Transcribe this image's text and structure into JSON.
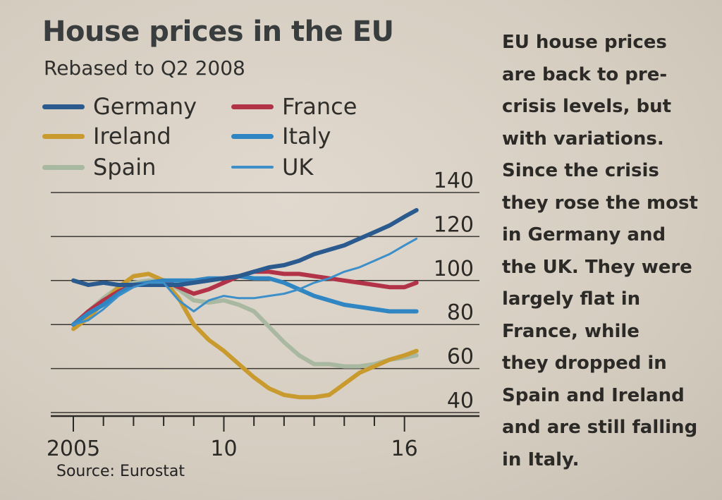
{
  "chart_data": {
    "type": "line",
    "title": "House prices in the EU",
    "subtitle": "Rebased to Q2 2008",
    "source": "Source: Eurostat",
    "ylim": [
      40,
      140
    ],
    "yticks": [
      40,
      60,
      80,
      100,
      120,
      140
    ],
    "xticks": [
      {
        "year": 2005,
        "label": "2005"
      },
      {
        "year": 2010,
        "label": "10"
      },
      {
        "year": 2016,
        "label": "16"
      }
    ],
    "xrange": [
      2005,
      2016.5
    ],
    "series": [
      {
        "name": "Germany",
        "color": "#2a5a8e",
        "points": [
          [
            2005,
            100
          ],
          [
            2005.5,
            98
          ],
          [
            2006,
            99
          ],
          [
            2006.5,
            98
          ],
          [
            2007,
            98
          ],
          [
            2007.5,
            98
          ],
          [
            2008,
            98
          ],
          [
            2008.5,
            98
          ],
          [
            2009,
            99
          ],
          [
            2009.5,
            100
          ],
          [
            2010,
            101
          ],
          [
            2010.5,
            102
          ],
          [
            2011,
            104
          ],
          [
            2011.5,
            106
          ],
          [
            2012,
            107
          ],
          [
            2012.5,
            109
          ],
          [
            2013,
            112
          ],
          [
            2013.5,
            114
          ],
          [
            2014,
            116
          ],
          [
            2014.5,
            119
          ],
          [
            2015,
            122
          ],
          [
            2015.5,
            125
          ],
          [
            2016,
            129
          ],
          [
            2016.4,
            132
          ]
        ]
      },
      {
        "name": "France",
        "color": "#b23347",
        "points": [
          [
            2005,
            80
          ],
          [
            2005.5,
            86
          ],
          [
            2006,
            91
          ],
          [
            2006.5,
            95
          ],
          [
            2007,
            98
          ],
          [
            2007.5,
            99
          ],
          [
            2008,
            100
          ],
          [
            2008.5,
            97
          ],
          [
            2009,
            94
          ],
          [
            2009.5,
            96
          ],
          [
            2010,
            99
          ],
          [
            2010.5,
            102
          ],
          [
            2011,
            104
          ],
          [
            2011.5,
            104
          ],
          [
            2012,
            103
          ],
          [
            2012.5,
            103
          ],
          [
            2013,
            102
          ],
          [
            2013.5,
            101
          ],
          [
            2014,
            100
          ],
          [
            2014.5,
            99
          ],
          [
            2015,
            98
          ],
          [
            2015.5,
            97
          ],
          [
            2016,
            97
          ],
          [
            2016.4,
            99
          ]
        ]
      },
      {
        "name": "Ireland",
        "color": "#c99a2e",
        "points": [
          [
            2005,
            78
          ],
          [
            2005.5,
            83
          ],
          [
            2006,
            90
          ],
          [
            2006.5,
            97
          ],
          [
            2007,
            102
          ],
          [
            2007.5,
            103
          ],
          [
            2008,
            100
          ],
          [
            2008.5,
            92
          ],
          [
            2009,
            80
          ],
          [
            2009.5,
            73
          ],
          [
            2010,
            68
          ],
          [
            2010.5,
            62
          ],
          [
            2011,
            56
          ],
          [
            2011.5,
            51
          ],
          [
            2012,
            48
          ],
          [
            2012.5,
            47
          ],
          [
            2013,
            47
          ],
          [
            2013.5,
            48
          ],
          [
            2014,
            53
          ],
          [
            2014.5,
            58
          ],
          [
            2015,
            61
          ],
          [
            2015.5,
            64
          ],
          [
            2016,
            66
          ],
          [
            2016.4,
            68
          ]
        ]
      },
      {
        "name": "Italy",
        "color": "#2f86c2",
        "points": [
          [
            2005,
            80
          ],
          [
            2005.5,
            85
          ],
          [
            2006,
            89
          ],
          [
            2006.5,
            94
          ],
          [
            2007,
            98
          ],
          [
            2007.5,
            99
          ],
          [
            2008,
            100
          ],
          [
            2008.5,
            100
          ],
          [
            2009,
            100
          ],
          [
            2009.5,
            101
          ],
          [
            2010,
            101
          ],
          [
            2010.5,
            102
          ],
          [
            2011,
            101
          ],
          [
            2011.5,
            101
          ],
          [
            2012,
            99
          ],
          [
            2012.5,
            96
          ],
          [
            2013,
            93
          ],
          [
            2013.5,
            91
          ],
          [
            2014,
            89
          ],
          [
            2014.5,
            88
          ],
          [
            2015,
            87
          ],
          [
            2015.5,
            86
          ],
          [
            2016,
            86
          ],
          [
            2016.4,
            86
          ]
        ]
      },
      {
        "name": "Spain",
        "color": "#a9b8a0",
        "points": [
          [
            2005,
            80
          ],
          [
            2005.5,
            86
          ],
          [
            2006,
            92
          ],
          [
            2006.5,
            97
          ],
          [
            2007,
            99
          ],
          [
            2007.5,
            100
          ],
          [
            2008,
            100
          ],
          [
            2008.5,
            96
          ],
          [
            2009,
            91
          ],
          [
            2009.5,
            90
          ],
          [
            2010,
            91
          ],
          [
            2010.5,
            89
          ],
          [
            2011,
            86
          ],
          [
            2011.5,
            79
          ],
          [
            2012,
            72
          ],
          [
            2012.5,
            66
          ],
          [
            2013,
            62
          ],
          [
            2013.5,
            62
          ],
          [
            2014,
            61
          ],
          [
            2014.5,
            61
          ],
          [
            2015,
            62
          ],
          [
            2015.5,
            64
          ],
          [
            2016,
            65
          ],
          [
            2016.4,
            66
          ]
        ]
      },
      {
        "name": "UK",
        "color": "#3c8fc9",
        "thin": true,
        "points": [
          [
            2005,
            80
          ],
          [
            2005.5,
            82
          ],
          [
            2006,
            87
          ],
          [
            2006.5,
            93
          ],
          [
            2007,
            97
          ],
          [
            2007.5,
            99
          ],
          [
            2008,
            99
          ],
          [
            2008.5,
            91
          ],
          [
            2009,
            86
          ],
          [
            2009.5,
            91
          ],
          [
            2010,
            93
          ],
          [
            2010.5,
            92
          ],
          [
            2011,
            92
          ],
          [
            2011.5,
            93
          ],
          [
            2012,
            94
          ],
          [
            2012.5,
            96
          ],
          [
            2013,
            99
          ],
          [
            2013.5,
            101
          ],
          [
            2014,
            104
          ],
          [
            2014.5,
            106
          ],
          [
            2015,
            109
          ],
          [
            2015.5,
            112
          ],
          [
            2016,
            116
          ],
          [
            2016.4,
            119
          ]
        ]
      }
    ]
  },
  "legend": [
    {
      "label": "Germany",
      "color": "#2a5a8e"
    },
    {
      "label": "France",
      "color": "#b23347"
    },
    {
      "label": "Ireland",
      "color": "#c99a2e"
    },
    {
      "label": "Italy",
      "color": "#2f86c2"
    },
    {
      "label": "Spain",
      "color": "#a9b8a0"
    },
    {
      "label": "UK",
      "color": "#3c8fc9"
    }
  ],
  "side_text": [
    "EU house prices",
    "are back to pre-",
    "crisis levels, but",
    "with variations.",
    "Since the crisis",
    "they rose the most",
    "in Germany and",
    "the UK. They were",
    "largely flat in",
    "France, while",
    "they dropped in",
    "Spain and Ireland",
    "and are still falling",
    "in Italy."
  ]
}
